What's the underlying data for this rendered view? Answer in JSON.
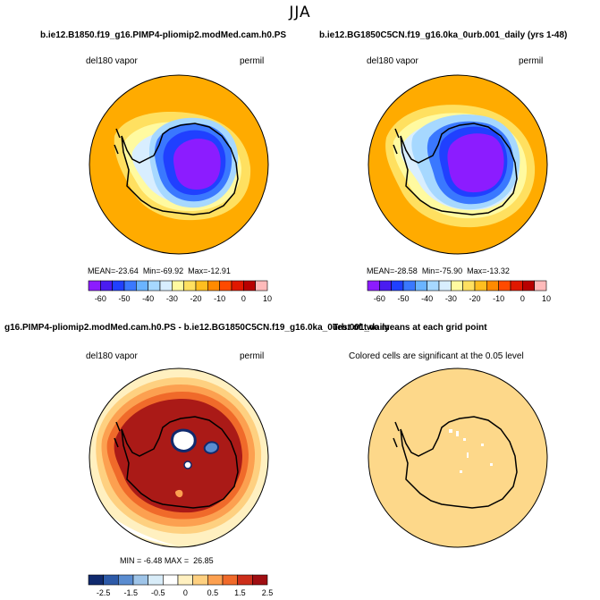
{
  "title": "JJA",
  "top_left": {
    "case": "b.ie12.B1850.f19_g16.PIMP4-pliomip2.modMed.cam.h0.PS",
    "variable": "del180 vapor",
    "units": "permil",
    "stats": {
      "mean_label": "MEAN=",
      "mean": "-23.64",
      "min_label": "Min=",
      "min": "-69.92",
      "max_label": "Max=",
      "max": "-12.91"
    }
  },
  "top_right": {
    "case": "b.ie12.BG1850C5CN.f19_g16.0ka_0urb.001_daily (yrs 1-48)",
    "variable": "del180 vapor",
    "units": "permil",
    "stats": {
      "mean_label": "MEAN=",
      "mean": "-28.58",
      "min_label": "Min=",
      "min": "-75.90",
      "max_label": "Max=",
      "max": "-13.32"
    }
  },
  "bottom_left": {
    "case": "g16.PIMP4-pliomip2.modMed.cam.h0.PS - b.ie12.BG1850C5CN.f19_g16.0ka_0urb.001_daily",
    "variable": "del180 vapor",
    "units": "permil",
    "stats": {
      "min_label": "MIN =",
      "min": "-6.48",
      "max_label": "MAX =",
      "max": "26.85"
    }
  },
  "bottom_right": {
    "case": "Test of two means at each grid point",
    "note": "Colored cells are significant at the 0.05 level"
  },
  "colors": {
    "ocean_abs": "#ffab00",
    "ocean_diff": "#aa1a17",
    "signif": "#fdd88a",
    "coast": "#000000"
  },
  "chart_data": [
    {
      "type": "heatmap",
      "panel": "top_left",
      "title": "",
      "colorbar": {
        "ticks": [
          "-60",
          "-50",
          "-40",
          "-30",
          "-20",
          "-10",
          "0",
          "10"
        ],
        "colors": [
          "#8c1cff",
          "#4a1cf0",
          "#2040ff",
          "#3a78ff",
          "#6ab4ff",
          "#a6d8ff",
          "#d8eeff",
          "#fffaa0",
          "#ffe060",
          "#ffbe20",
          "#ff8a00",
          "#ff4a00",
          "#e01800",
          "#b80000",
          "#ffbaba"
        ]
      },
      "stats": {
        "mean": -23.64,
        "min": -69.92,
        "max": -12.91
      }
    },
    {
      "type": "heatmap",
      "panel": "top_right",
      "title": "",
      "colorbar": {
        "ticks": [
          "-60",
          "-50",
          "-40",
          "-30",
          "-20",
          "-10",
          "0",
          "10"
        ],
        "colors": [
          "#8c1cff",
          "#4a1cf0",
          "#2040ff",
          "#3a78ff",
          "#6ab4ff",
          "#a6d8ff",
          "#d8eeff",
          "#fffaa0",
          "#ffe060",
          "#ffbe20",
          "#ff8a00",
          "#ff4a00",
          "#e01800",
          "#b80000",
          "#ffbaba"
        ]
      },
      "stats": {
        "mean": -28.58,
        "min": -75.9,
        "max": -13.32
      }
    },
    {
      "type": "heatmap",
      "panel": "bottom_left",
      "title": "",
      "colorbar": {
        "ticks": [
          "-2.5",
          "-1.5",
          "-0.5",
          "0",
          "0.5",
          "1.5",
          "2.5"
        ],
        "colors": [
          "#102a6e",
          "#2d5aa8",
          "#5a8cd0",
          "#9ec4e8",
          "#d8ecf8",
          "#ffffff",
          "#fff0c0",
          "#fed080",
          "#fca050",
          "#f06a2a",
          "#cc2e1a",
          "#a00e12"
        ]
      },
      "stats": {
        "min": -6.48,
        "max": 26.85
      }
    },
    {
      "type": "heatmap",
      "panel": "bottom_right",
      "title": "",
      "significance_level": 0.05
    }
  ]
}
